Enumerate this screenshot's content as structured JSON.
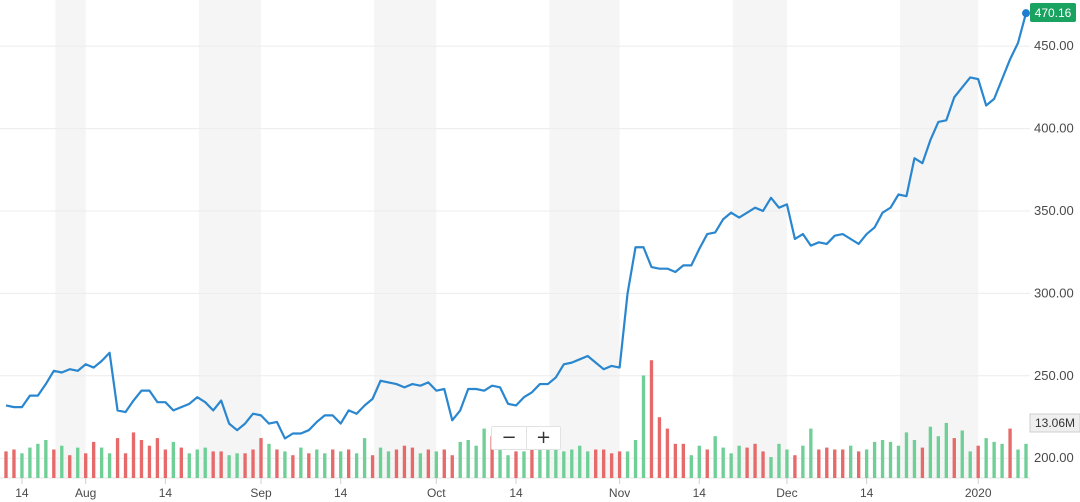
{
  "chart_data": {
    "type": "line",
    "ylim": [
      188,
      478
    ],
    "y_ticks": [
      "200.00",
      "250.00",
      "300.00",
      "350.00",
      "400.00",
      "450.00"
    ],
    "y_tick_values": [
      200,
      250,
      300,
      350,
      400,
      450
    ],
    "last_price": "470.16",
    "last_volume": "13.06M",
    "x_labels": [
      "14",
      "Aug",
      "14",
      "Sep",
      "14",
      "Oct",
      "14",
      "Nov",
      "14",
      "Dec",
      "14",
      "2020"
    ],
    "x_label_index": [
      2,
      10,
      20,
      32,
      42,
      54,
      64,
      77,
      87,
      98,
      108,
      122
    ],
    "price": [
      232,
      231,
      231,
      238,
      238,
      245,
      253,
      252,
      254,
      253,
      257,
      255,
      259,
      264,
      229,
      228,
      235,
      241,
      241,
      234,
      234,
      229,
      231,
      233,
      237,
      234,
      229,
      235,
      221,
      217,
      221,
      227,
      226,
      221,
      222,
      212,
      215,
      215,
      217,
      222,
      226,
      226,
      221,
      229,
      227,
      232,
      236,
      247,
      246,
      245,
      243,
      245,
      244,
      246,
      241,
      242,
      223,
      229,
      242,
      242,
      241,
      244,
      243,
      233,
      232,
      237,
      240,
      245,
      245,
      249,
      257,
      258,
      260,
      262,
      258,
      254,
      256,
      255,
      300,
      328,
      328,
      316,
      315,
      315,
      313,
      317,
      317,
      327,
      336,
      337,
      345,
      349,
      346,
      349,
      352,
      350,
      358,
      352,
      354,
      333,
      336,
      329,
      331,
      330,
      335,
      336,
      333,
      330,
      336,
      340,
      349,
      352,
      360,
      359,
      382,
      379,
      393,
      404,
      405,
      419,
      425,
      431,
      430,
      414,
      418,
      430,
      442,
      452,
      470
    ],
    "volume_up": [
      false,
      false,
      true,
      true,
      true,
      true,
      false,
      true,
      false,
      true,
      false,
      false,
      true,
      true,
      false,
      false,
      false,
      false,
      false,
      false,
      false,
      true,
      false,
      true,
      true,
      true,
      false,
      false,
      true,
      true,
      false,
      false,
      false,
      true,
      false,
      true,
      false,
      true,
      false,
      true,
      true,
      false,
      true,
      false,
      true,
      true,
      false,
      true,
      true,
      false,
      false,
      false,
      true,
      false,
      true,
      false,
      false,
      true,
      true,
      true,
      true,
      false,
      true,
      true,
      false,
      true,
      false,
      true,
      true,
      true,
      true,
      true,
      true,
      true,
      false,
      false,
      false,
      false,
      true,
      true,
      true,
      false,
      false,
      false,
      false,
      false,
      true,
      true,
      false,
      true,
      true,
      true,
      true,
      false,
      false,
      false,
      true,
      true,
      true,
      false,
      true,
      true,
      false,
      false,
      false,
      false,
      true,
      false,
      true,
      true,
      true,
      true,
      true,
      true,
      true,
      false,
      true,
      true,
      true,
      false,
      true,
      true,
      false,
      true,
      true,
      true,
      false,
      true,
      true
    ],
    "volume": [
      14,
      15,
      13,
      16,
      18,
      20,
      15,
      17,
      12,
      16,
      13,
      19,
      16,
      13,
      21,
      13,
      24,
      20,
      17,
      21,
      15,
      19,
      16,
      13,
      15,
      16,
      14,
      14,
      12,
      13,
      13,
      15,
      21,
      18,
      15,
      14,
      12,
      16,
      13,
      15,
      13,
      15,
      14,
      15,
      13,
      21,
      12,
      16,
      14,
      15,
      17,
      16,
      13,
      15,
      14,
      15,
      12,
      19,
      20,
      17,
      26,
      22,
      20,
      12,
      14,
      14,
      16,
      20,
      15,
      17,
      14,
      15,
      17,
      14,
      15,
      15,
      13,
      14,
      14,
      20,
      54,
      62,
      32,
      26,
      18,
      18,
      12,
      17,
      15,
      22,
      16,
      13,
      17,
      16,
      18,
      14,
      11,
      18,
      15,
      12,
      17,
      26,
      15,
      16,
      15,
      15,
      17,
      14,
      15,
      19,
      20,
      19,
      17,
      24,
      20,
      16,
      27,
      22,
      29,
      21,
      25,
      14,
      17,
      21,
      19,
      18,
      26,
      15,
      18
    ]
  }
}
